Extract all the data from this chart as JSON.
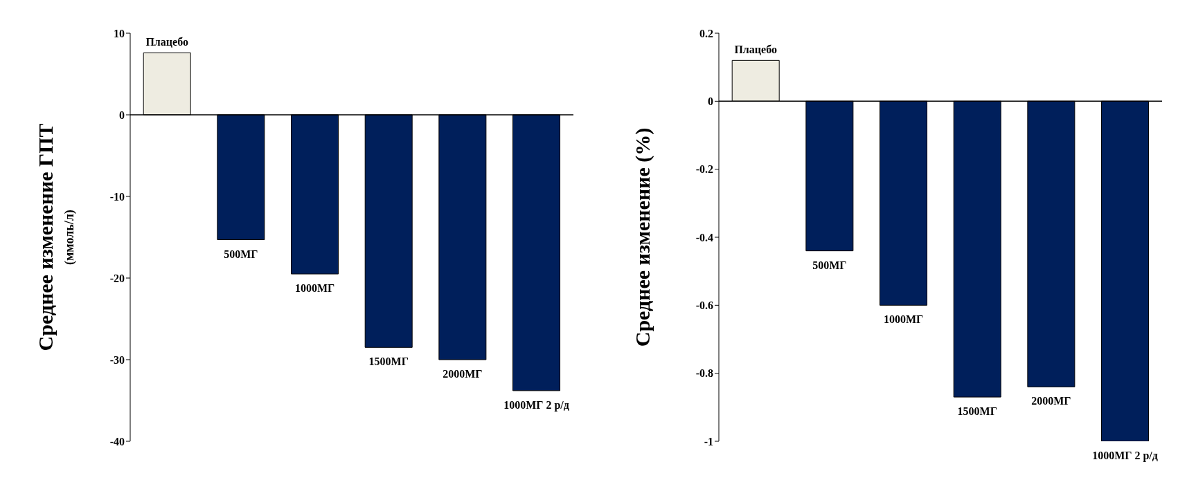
{
  "chart_data": [
    {
      "type": "bar",
      "ylabel": "Среднее изменение ГПТ\n(ммоль/л)",
      "categories": [
        "Плацебо",
        "500МГ",
        "1000МГ",
        "1500МГ",
        "2000МГ",
        "1000МГ 2 р/д"
      ],
      "values": [
        7.6,
        -15.3,
        -19.5,
        -28.5,
        -30,
        -33.8
      ],
      "colors": [
        "#eeece1",
        "#001f5b",
        "#001f5b",
        "#001f5b",
        "#001f5b",
        "#001f5b"
      ],
      "ylim": [
        -40,
        10
      ],
      "yticks": [
        10,
        0,
        -10,
        -20,
        -30,
        -40
      ]
    },
    {
      "type": "bar",
      "ylabel": "Среднее изменение (%)",
      "categories": [
        "Плацебо",
        "500МГ",
        "1000МГ",
        "1500МГ",
        "2000МГ",
        "1000МГ 2 р/д"
      ],
      "values": [
        0.12,
        -0.44,
        -0.6,
        -0.87,
        -0.84,
        -1
      ],
      "colors": [
        "#eeece1",
        "#001f5b",
        "#001f5b",
        "#001f5b",
        "#001f5b",
        "#001f5b"
      ],
      "ylim": [
        -1,
        0.2
      ],
      "yticks": [
        0.2,
        0,
        -0.2,
        -0.4,
        -0.6,
        -0.8,
        -1
      ]
    }
  ]
}
